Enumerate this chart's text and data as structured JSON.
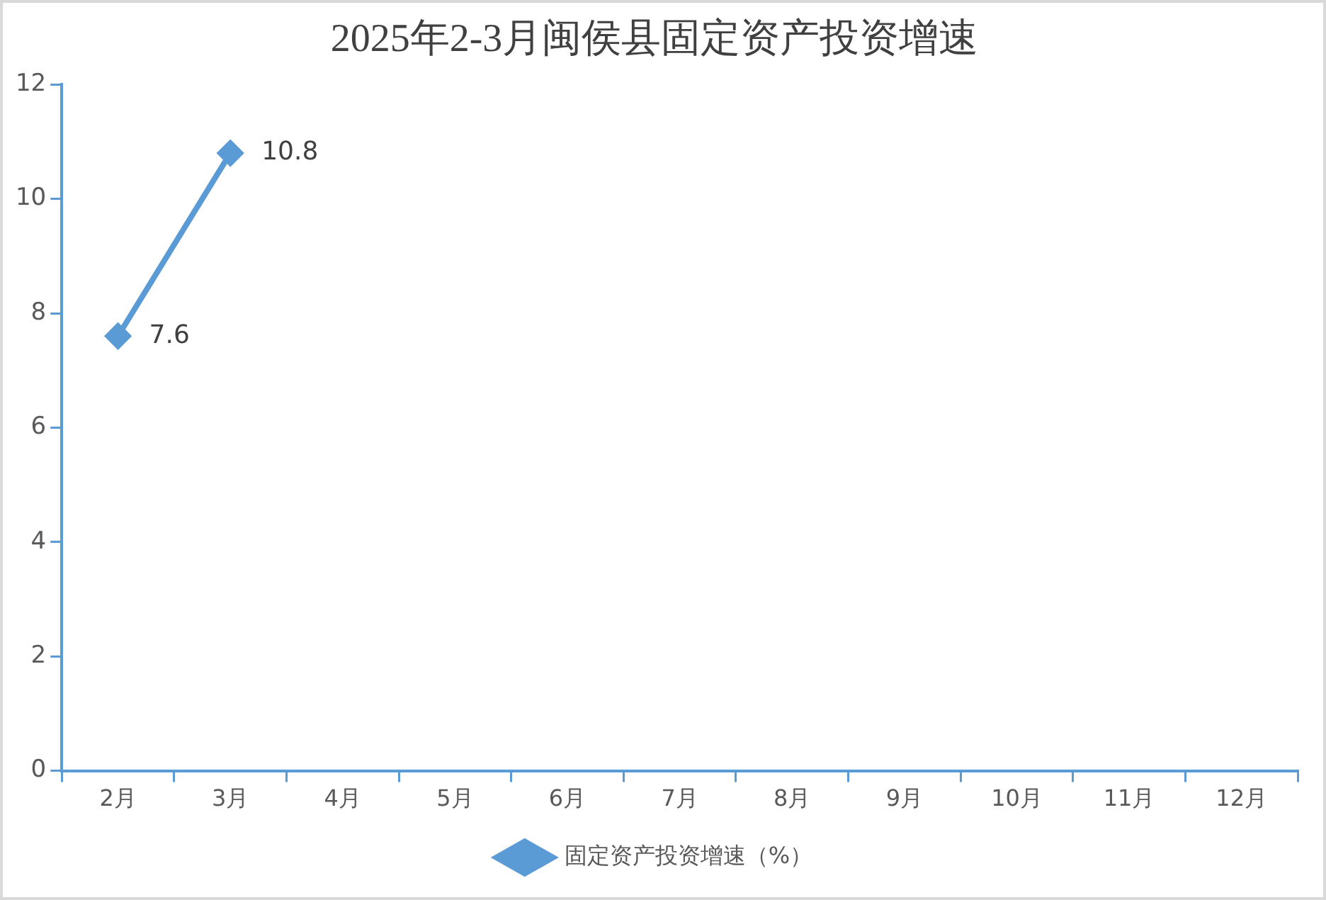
{
  "chart_data": {
    "type": "line",
    "title": "2025年2-3月闽侯县固定资产投资增速",
    "categories": [
      "2月",
      "3月",
      "4月",
      "5月",
      "6月",
      "7月",
      "8月",
      "9月",
      "10月",
      "11月",
      "12月"
    ],
    "series": [
      {
        "name": "固定资产投资增速（%）",
        "color": "#5b9bd5",
        "values": [
          7.6,
          10.8,
          null,
          null,
          null,
          null,
          null,
          null,
          null,
          null,
          null
        ]
      }
    ],
    "ylim": [
      0,
      12
    ],
    "yticks": [
      0,
      2,
      4,
      6,
      8,
      10,
      12
    ],
    "grid": false,
    "legend": "bottom",
    "marker": "diamond",
    "line_style": "solid",
    "data_labels": true
  }
}
